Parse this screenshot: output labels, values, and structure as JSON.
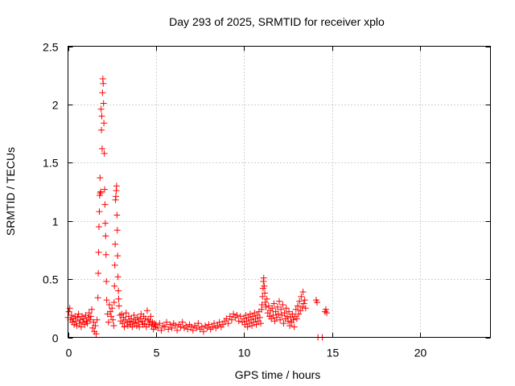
{
  "chart_data": {
    "type": "scatter",
    "title": "Day 293 of 2025, SRMTID for receiver xplo",
    "xlabel": "GPS time / hours",
    "ylabel": "SRMTID / TECUs",
    "xlim": [
      0,
      24
    ],
    "ylim": [
      0,
      2.5
    ],
    "xticks": [
      0,
      5,
      10,
      15,
      20
    ],
    "yticks": [
      0,
      0.5,
      1,
      1.5,
      2,
      2.5
    ],
    "xtick_labels": [
      "0",
      "5",
      "10",
      "15",
      "20"
    ],
    "ytick_labels": [
      "0",
      "0.5",
      "1",
      "1.5",
      "2",
      "2.5"
    ],
    "grid": true,
    "marker": "+",
    "color": "#ff0000",
    "series": [
      {
        "name": "SRMTID",
        "points": [
          [
            0.0,
            0.17
          ],
          [
            0.05,
            0.22
          ],
          [
            0.1,
            0.25
          ],
          [
            0.15,
            0.15
          ],
          [
            0.2,
            0.19
          ],
          [
            0.25,
            0.13
          ],
          [
            0.3,
            0.16
          ],
          [
            0.35,
            0.11
          ],
          [
            0.4,
            0.18
          ],
          [
            0.45,
            0.14
          ],
          [
            0.5,
            0.1
          ],
          [
            0.55,
            0.17
          ],
          [
            0.6,
            0.2
          ],
          [
            0.65,
            0.12
          ],
          [
            0.7,
            0.15
          ],
          [
            0.75,
            0.09
          ],
          [
            0.8,
            0.18
          ],
          [
            0.85,
            0.13
          ],
          [
            0.9,
            0.16
          ],
          [
            0.95,
            0.11
          ],
          [
            1.0,
            0.19
          ],
          [
            1.05,
            0.14
          ],
          [
            1.1,
            0.12
          ],
          [
            1.15,
            0.17
          ],
          [
            1.2,
            0.21
          ],
          [
            1.25,
            0.15
          ],
          [
            1.3,
            0.18
          ],
          [
            1.35,
            0.24
          ],
          [
            1.4,
            0.08
          ],
          [
            1.45,
            0.13
          ],
          [
            1.5,
            0.05
          ],
          [
            1.55,
            0.1
          ],
          [
            1.6,
            0.03
          ],
          [
            1.65,
            0.15
          ],
          [
            1.7,
            0.34
          ],
          [
            1.72,
            0.55
          ],
          [
            1.74,
            0.73
          ],
          [
            1.76,
            0.95
          ],
          [
            1.78,
            1.08
          ],
          [
            1.8,
            1.22
          ],
          [
            1.82,
            1.37
          ],
          [
            1.84,
            1.24
          ],
          [
            1.86,
            1.25
          ],
          [
            1.88,
            1.96
          ],
          [
            1.9,
            1.78
          ],
          [
            1.92,
            1.9
          ],
          [
            1.94,
            1.62
          ],
          [
            1.96,
            2.1
          ],
          [
            1.98,
            2.22
          ],
          [
            2.0,
            2.18
          ],
          [
            2.02,
            2.01
          ],
          [
            2.04,
            1.84
          ],
          [
            2.06,
            1.58
          ],
          [
            2.08,
            1.27
          ],
          [
            2.1,
            1.14
          ],
          [
            2.12,
            0.98
          ],
          [
            2.14,
            0.87
          ],
          [
            2.16,
            0.71
          ],
          [
            2.18,
            0.48
          ],
          [
            2.2,
            0.32
          ],
          [
            2.25,
            0.2
          ],
          [
            2.3,
            0.13
          ],
          [
            2.35,
            0.28
          ],
          [
            2.4,
            0.22
          ],
          [
            2.45,
            0.18
          ],
          [
            2.5,
            0.25
          ],
          [
            2.55,
            0.15
          ],
          [
            2.6,
            0.1
          ],
          [
            2.62,
            0.3
          ],
          [
            2.64,
            0.44
          ],
          [
            2.66,
            0.62
          ],
          [
            2.68,
            0.8
          ],
          [
            2.7,
            1.18
          ],
          [
            2.72,
            1.21
          ],
          [
            2.74,
            1.26
          ],
          [
            2.76,
            1.3
          ],
          [
            2.78,
            1.05
          ],
          [
            2.8,
            0.92
          ],
          [
            2.82,
            0.7
          ],
          [
            2.84,
            0.52
          ],
          [
            2.86,
            0.4
          ],
          [
            2.88,
            0.33
          ],
          [
            2.9,
            0.27
          ],
          [
            2.95,
            0.19
          ],
          [
            3.0,
            0.14
          ],
          [
            3.05,
            0.2
          ],
          [
            3.1,
            0.12
          ],
          [
            3.15,
            0.17
          ],
          [
            3.2,
            0.09
          ],
          [
            3.25,
            0.15
          ],
          [
            3.3,
            0.21
          ],
          [
            3.35,
            0.13
          ],
          [
            3.4,
            0.1
          ],
          [
            3.45,
            0.18
          ],
          [
            3.5,
            0.14
          ],
          [
            3.55,
            0.11
          ],
          [
            3.6,
            0.16
          ],
          [
            3.65,
            0.09
          ],
          [
            3.7,
            0.13
          ],
          [
            3.75,
            0.19
          ],
          [
            3.8,
            0.12
          ],
          [
            3.85,
            0.15
          ],
          [
            3.9,
            0.1
          ],
          [
            3.95,
            0.17
          ],
          [
            4.0,
            0.13
          ],
          [
            4.05,
            0.09
          ],
          [
            4.1,
            0.16
          ],
          [
            4.15,
            0.2
          ],
          [
            4.2,
            0.14
          ],
          [
            4.25,
            0.11
          ],
          [
            4.3,
            0.18
          ],
          [
            4.35,
            0.12
          ],
          [
            4.4,
            0.16
          ],
          [
            4.45,
            0.09
          ],
          [
            4.5,
            0.23
          ],
          [
            4.55,
            0.15
          ],
          [
            4.6,
            0.11
          ],
          [
            4.65,
            0.14
          ],
          [
            4.7,
            0.18
          ],
          [
            4.75,
            0.1
          ],
          [
            4.8,
            0.13
          ],
          [
            4.85,
            0.07
          ],
          [
            4.9,
            0.12
          ],
          [
            4.95,
            0.09
          ],
          [
            5.0,
            0.11
          ],
          [
            5.1,
            0.08
          ],
          [
            5.2,
            0.12
          ],
          [
            5.3,
            0.06
          ],
          [
            5.4,
            0.1
          ],
          [
            5.5,
            0.09
          ],
          [
            5.6,
            0.13
          ],
          [
            5.7,
            0.07
          ],
          [
            5.8,
            0.11
          ],
          [
            5.9,
            0.08
          ],
          [
            6.0,
            0.12
          ],
          [
            6.1,
            0.1
          ],
          [
            6.2,
            0.06
          ],
          [
            6.3,
            0.11
          ],
          [
            6.4,
            0.09
          ],
          [
            6.5,
            0.13
          ],
          [
            6.6,
            0.08
          ],
          [
            6.7,
            0.1
          ],
          [
            6.8,
            0.07
          ],
          [
            6.9,
            0.11
          ],
          [
            7.0,
            0.09
          ],
          [
            7.1,
            0.06
          ],
          [
            7.2,
            0.1
          ],
          [
            7.3,
            0.08
          ],
          [
            7.4,
            0.12
          ],
          [
            7.5,
            0.07
          ],
          [
            7.6,
            0.09
          ],
          [
            7.7,
            0.05
          ],
          [
            7.8,
            0.1
          ],
          [
            7.9,
            0.08
          ],
          [
            8.0,
            0.11
          ],
          [
            8.1,
            0.07
          ],
          [
            8.2,
            0.09
          ],
          [
            8.3,
            0.12
          ],
          [
            8.4,
            0.08
          ],
          [
            8.5,
            0.1
          ],
          [
            8.6,
            0.13
          ],
          [
            8.7,
            0.09
          ],
          [
            8.8,
            0.11
          ],
          [
            8.9,
            0.14
          ],
          [
            9.0,
            0.16
          ],
          [
            9.1,
            0.12
          ],
          [
            9.2,
            0.18
          ],
          [
            9.3,
            0.15
          ],
          [
            9.4,
            0.2
          ],
          [
            9.5,
            0.17
          ],
          [
            9.6,
            0.19
          ],
          [
            9.7,
            0.14
          ],
          [
            9.8,
            0.18
          ],
          [
            9.9,
            0.13
          ],
          [
            10.0,
            0.16
          ],
          [
            10.05,
            0.11
          ],
          [
            10.1,
            0.19
          ],
          [
            10.15,
            0.14
          ],
          [
            10.2,
            0.09
          ],
          [
            10.25,
            0.17
          ],
          [
            10.3,
            0.12
          ],
          [
            10.35,
            0.2
          ],
          [
            10.4,
            0.15
          ],
          [
            10.45,
            0.1
          ],
          [
            10.5,
            0.18
          ],
          [
            10.55,
            0.13
          ],
          [
            10.6,
            0.21
          ],
          [
            10.65,
            0.16
          ],
          [
            10.7,
            0.11
          ],
          [
            10.75,
            0.19
          ],
          [
            10.8,
            0.14
          ],
          [
            10.85,
            0.22
          ],
          [
            10.9,
            0.17
          ],
          [
            10.95,
            0.12
          ],
          [
            11.0,
            0.24
          ],
          [
            11.02,
            0.28
          ],
          [
            11.05,
            0.35
          ],
          [
            11.08,
            0.42
          ],
          [
            11.1,
            0.48
          ],
          [
            11.12,
            0.51
          ],
          [
            11.15,
            0.44
          ],
          [
            11.18,
            0.38
          ],
          [
            11.2,
            0.3
          ],
          [
            11.25,
            0.26
          ],
          [
            11.3,
            0.33
          ],
          [
            11.35,
            0.21
          ],
          [
            11.4,
            0.27
          ],
          [
            11.45,
            0.18
          ],
          [
            11.5,
            0.23
          ],
          [
            11.55,
            0.16
          ],
          [
            11.6,
            0.25
          ],
          [
            11.65,
            0.19
          ],
          [
            11.7,
            0.29
          ],
          [
            11.75,
            0.14
          ],
          [
            11.8,
            0.22
          ],
          [
            11.85,
            0.17
          ],
          [
            11.9,
            0.26
          ],
          [
            11.95,
            0.2
          ],
          [
            12.0,
            0.31
          ],
          [
            12.05,
            0.15
          ],
          [
            12.1,
            0.24
          ],
          [
            12.15,
            0.19
          ],
          [
            12.2,
            0.28
          ],
          [
            12.25,
            0.12
          ],
          [
            12.3,
            0.21
          ],
          [
            12.35,
            0.16
          ],
          [
            12.4,
            0.25
          ],
          [
            12.45,
            0.18
          ],
          [
            12.5,
            0.14
          ],
          [
            12.55,
            0.22
          ],
          [
            12.6,
            0.1
          ],
          [
            12.65,
            0.17
          ],
          [
            12.7,
            0.13
          ],
          [
            12.75,
            0.2
          ],
          [
            12.8,
            0.15
          ],
          [
            12.85,
            0.09
          ],
          [
            12.9,
            0.18
          ],
          [
            12.95,
            0.24
          ],
          [
            13.0,
            0.16
          ],
          [
            13.05,
            0.27
          ],
          [
            13.1,
            0.2
          ],
          [
            13.15,
            0.31
          ],
          [
            13.2,
            0.23
          ],
          [
            13.25,
            0.35
          ],
          [
            13.3,
            0.26
          ],
          [
            13.35,
            0.39
          ],
          [
            13.4,
            0.29
          ],
          [
            13.45,
            0.32
          ],
          [
            13.5,
            0.25
          ],
          [
            14.1,
            0.32
          ],
          [
            14.15,
            0.3
          ],
          [
            14.2,
            0.0
          ],
          [
            14.45,
            0.0
          ],
          [
            14.6,
            0.22
          ],
          [
            14.65,
            0.24
          ],
          [
            14.7,
            0.21
          ]
        ]
      }
    ]
  }
}
